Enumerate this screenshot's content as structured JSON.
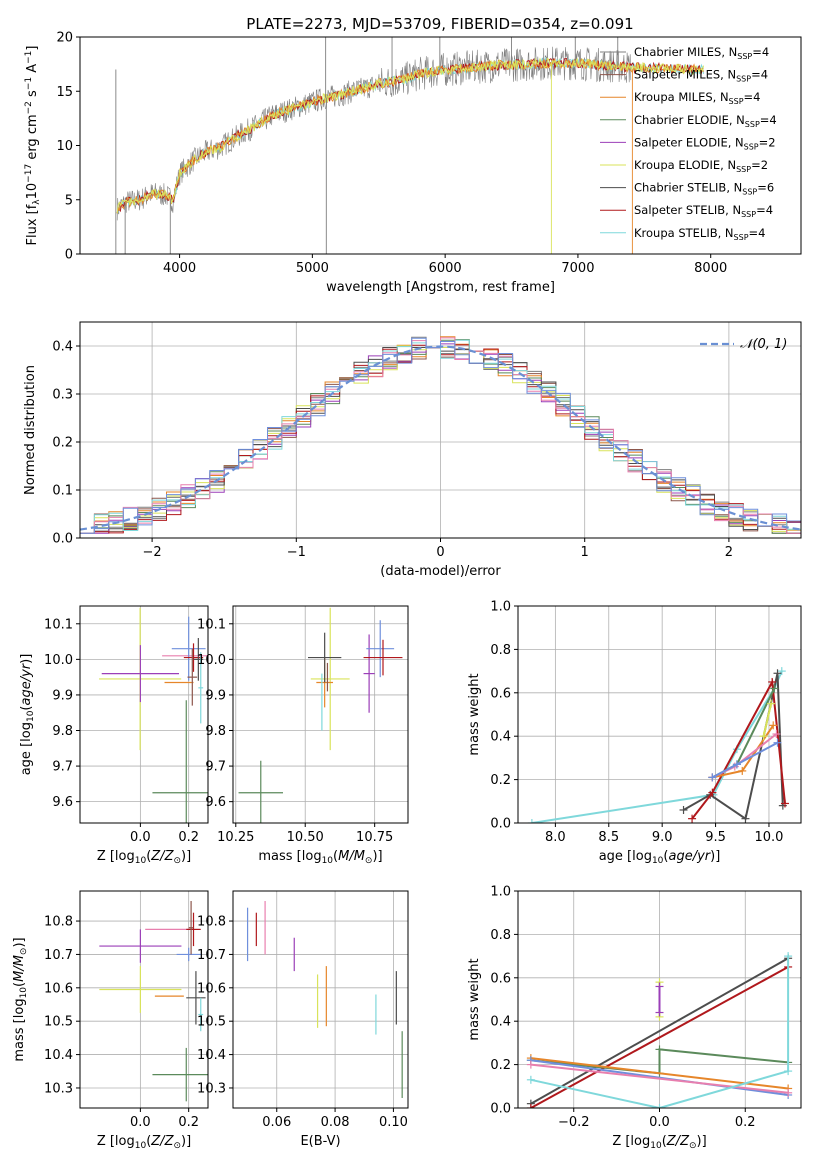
{
  "figure_title": "PLATE=2273, MJD=53709, FIBERID=0354, z=0.091",
  "colors": {
    "chabrier_miles": "#7f7f7f",
    "salpeter_miles": "#8c564b",
    "kroupa_miles": "#e6862a",
    "chabrier_elodie": "#5b8a5b",
    "salpeter_elodie": "#9b3fb8",
    "kroupa_elodie": "#d9e35a",
    "chabrier_stelib": "#4d4d4d",
    "salpeter_stelib": "#b0181c",
    "kroupa_stelib": "#7fd8db",
    "pink": "#e87fae",
    "blue": "#6f8fdc",
    "normal_curve": "#6a90d4",
    "grid": "#b0b0b0"
  },
  "chart_data": [
    {
      "id": "spectrum",
      "type": "line",
      "xlabel": "wavelength [Angstrom, rest frame]",
      "ylabel": "Flux [f_λ 10^-17 erg cm^-2 s^-1 A^-1]",
      "xlim": [
        3250,
        8680
      ],
      "ylim": [
        0,
        20
      ],
      "xticks": [
        4000,
        5000,
        6000,
        7000,
        8000
      ],
      "yticks": [
        0,
        5,
        10,
        15,
        20
      ],
      "grid": false,
      "legend_position": "right",
      "legend": [
        {
          "label": "Chabrier MILES, N_SSP=4",
          "color_key": "chabrier_miles"
        },
        {
          "label": "Salpeter MILES, N_SSP=4",
          "color_key": "salpeter_miles"
        },
        {
          "label": "Kroupa MILES, N_SSP=4",
          "color_key": "kroupa_miles"
        },
        {
          "label": "Chabrier ELODIE, N_SSP=4",
          "color_key": "chabrier_elodie"
        },
        {
          "label": "Salpeter ELODIE, N_SSP=2",
          "color_key": "salpeter_elodie"
        },
        {
          "label": "Kroupa ELODIE, N_SSP=2",
          "color_key": "kroupa_elodie"
        },
        {
          "label": "Chabrier STELIB, N_SSP=6",
          "color_key": "chabrier_stelib"
        },
        {
          "label": "Salpeter STELIB, N_SSP=4",
          "color_key": "salpeter_stelib"
        },
        {
          "label": "Kroupa STELIB, N_SSP=4",
          "color_key": "kroupa_stelib"
        }
      ],
      "continuum": [
        [
          3530,
          4.2
        ],
        [
          3600,
          4.8
        ],
        [
          3700,
          5.0
        ],
        [
          3800,
          5.6
        ],
        [
          3900,
          5.4
        ],
        [
          3950,
          4.9
        ],
        [
          4000,
          7.4
        ],
        [
          4100,
          8.6
        ],
        [
          4200,
          9.4
        ],
        [
          4300,
          9.8
        ],
        [
          4400,
          10.6
        ],
        [
          4500,
          11.3
        ],
        [
          4600,
          12.0
        ],
        [
          4700,
          12.8
        ],
        [
          4800,
          13.2
        ],
        [
          4900,
          13.6
        ],
        [
          5000,
          14.0
        ],
        [
          5100,
          14.4
        ],
        [
          5200,
          14.6
        ],
        [
          5300,
          15.0
        ],
        [
          5400,
          15.3
        ],
        [
          5500,
          15.7
        ],
        [
          5600,
          15.9
        ],
        [
          5700,
          16.1
        ],
        [
          5800,
          16.6
        ],
        [
          5900,
          16.8
        ],
        [
          6000,
          17.0
        ],
        [
          6200,
          17.2
        ],
        [
          6400,
          17.4
        ],
        [
          6600,
          17.5
        ],
        [
          6800,
          17.6
        ],
        [
          7000,
          17.6
        ],
        [
          7200,
          17.4
        ],
        [
          7300,
          17.3
        ],
        [
          7400,
          17.2
        ]
      ],
      "model_extension": [
        [
          7400,
          17.2
        ],
        [
          7600,
          17.3
        ],
        [
          7800,
          17.0
        ],
        [
          7950,
          17.0
        ]
      ],
      "spikes": [
        [
          3520,
          0
        ],
        [
          3590,
          0
        ],
        [
          3930,
          0
        ],
        [
          5105,
          0
        ],
        [
          6800,
          0
        ],
        [
          7410,
          0
        ],
        [
          5100,
          20
        ],
        [
          5600,
          20
        ],
        [
          5960,
          20
        ],
        [
          6500,
          20
        ],
        [
          6980,
          20
        ],
        [
          7300,
          20
        ]
      ]
    },
    {
      "id": "residuals",
      "type": "line",
      "xlabel": "(data-model)/error",
      "ylabel": "Normed distribution",
      "xlim": [
        -2.5,
        2.5
      ],
      "ylim": [
        0,
        0.45
      ],
      "xticks": [
        -2,
        -1,
        0,
        1,
        2
      ],
      "yticks": [
        0.0,
        0.1,
        0.2,
        0.3,
        0.4
      ],
      "grid": true,
      "legend_position": "top-right",
      "legend": [
        {
          "label": "𝒩(0, 1)",
          "color_key": "normal_curve"
        }
      ],
      "bin_width": 0.1,
      "series_color_keys": [
        "chabrier_miles",
        "salpeter_miles",
        "kroupa_miles",
        "chabrier_elodie",
        "salpeter_elodie",
        "kroupa_elodie",
        "chabrier_stelib",
        "salpeter_stelib",
        "kroupa_stelib",
        "pink",
        "blue"
      ]
    },
    {
      "id": "age-vs-z",
      "type": "scatter",
      "xlabel": "Z [log10(Z/Z⊙)]",
      "ylabel": "age [log10(age/yr)]",
      "xlim": [
        -0.25,
        0.28
      ],
      "ylim": [
        9.54,
        10.15
      ],
      "xticks": [
        0.0,
        0.2
      ],
      "yticks": [
        9.6,
        9.7,
        9.8,
        9.9,
        10.0,
        10.1
      ],
      "grid": true,
      "points": [
        {
          "x": 0.19,
          "y": 9.625,
          "xerr": 0.14,
          "yerr": 0.26,
          "color_key": "chabrier_elodie"
        },
        {
          "x": -0.001,
          "y": 9.945,
          "xerr": 0.17,
          "yerr": 0.2,
          "color_key": "kroupa_elodie"
        },
        {
          "x": 0.0,
          "y": 9.96,
          "xerr": 0.16,
          "yerr": 0.08,
          "color_key": "salpeter_elodie"
        },
        {
          "x": 0.16,
          "y": 9.935,
          "xerr": 0.06,
          "yerr": 0.0,
          "color_key": "kroupa_miles"
        },
        {
          "x": 0.19,
          "y": 10.01,
          "xerr": 0.1,
          "yerr": 0.0,
          "color_key": "pink"
        },
        {
          "x": 0.2,
          "y": 10.03,
          "xerr": 0.07,
          "yerr": 0.09,
          "color_key": "blue"
        },
        {
          "x": 0.22,
          "y": 10.005,
          "xerr": 0.04,
          "yerr": 0.04,
          "color_key": "salpeter_stelib"
        },
        {
          "x": 0.24,
          "y": 10.0,
          "xerr": 0.02,
          "yerr": 0.06,
          "color_key": "chabrier_stelib"
        },
        {
          "x": 0.215,
          "y": 9.95,
          "xerr": 0.02,
          "yerr": 0.08,
          "color_key": "salpeter_miles"
        },
        {
          "x": 0.25,
          "y": 9.92,
          "xerr": 0.01,
          "yerr": 0.1,
          "color_key": "kroupa_stelib"
        }
      ]
    },
    {
      "id": "age-vs-mass",
      "type": "scatter",
      "xlabel": "mass [log10(M/M⊙)]",
      "ylabel": "",
      "xlim": [
        10.24,
        10.87
      ],
      "ylim": [
        9.54,
        10.15
      ],
      "xticks": [
        10.25,
        10.5,
        10.75
      ],
      "yticks": [
        9.6,
        9.7,
        9.8,
        9.9,
        10.0,
        10.1
      ],
      "grid": true,
      "points": [
        {
          "x": 10.34,
          "y": 9.625,
          "xerr": 0.08,
          "yerr": 0.09,
          "color_key": "chabrier_elodie"
        },
        {
          "x": 10.59,
          "y": 9.945,
          "xerr": 0.07,
          "yerr": 0.2,
          "color_key": "kroupa_elodie"
        },
        {
          "x": 10.57,
          "y": 9.935,
          "xerr": 0.03,
          "yerr": 0.07,
          "color_key": "kroupa_miles"
        },
        {
          "x": 10.57,
          "y": 10.005,
          "xerr": 0.06,
          "yerr": 0.07,
          "color_key": "chabrier_stelib"
        },
        {
          "x": 10.73,
          "y": 9.96,
          "xerr": 0.02,
          "yerr": 0.11,
          "color_key": "salpeter_elodie"
        },
        {
          "x": 10.77,
          "y": 10.03,
          "xerr": 0.05,
          "yerr": 0.08,
          "color_key": "blue"
        },
        {
          "x": 10.78,
          "y": 10.005,
          "xerr": 0.07,
          "yerr": 0.05,
          "color_key": "salpeter_stelib"
        },
        {
          "x": 10.56,
          "y": 9.88,
          "xerr": 0.0,
          "yerr": 0.08,
          "color_key": "kroupa_stelib"
        },
        {
          "x": 10.58,
          "y": 9.95,
          "xerr": 0.0,
          "yerr": 0.04,
          "color_key": "salpeter_miles"
        }
      ]
    },
    {
      "id": "weight-vs-age",
      "type": "line",
      "xlabel": "age [log10(age/yr)]",
      "ylabel": "mass weight",
      "xlim": [
        7.65,
        10.3
      ],
      "ylim": [
        0,
        1
      ],
      "xticks": [
        8.0,
        8.5,
        9.0,
        9.5,
        10.0
      ],
      "yticks": [
        0.0,
        0.2,
        0.4,
        0.6,
        0.8,
        1.0
      ],
      "grid": true,
      "series": [
        {
          "color_key": "kroupa_stelib",
          "x": [
            7.78,
            9.48,
            9.7,
            10.05,
            10.12
          ],
          "y": [
            0.0,
            0.13,
            0.34,
            0.62,
            0.7
          ]
        },
        {
          "color_key": "chabrier_stelib",
          "x": [
            9.2,
            9.45,
            9.78,
            10.08,
            10.13
          ],
          "y": [
            0.06,
            0.13,
            0.02,
            0.69,
            0.08
          ]
        },
        {
          "color_key": "salpeter_stelib",
          "x": [
            9.28,
            9.47,
            10.03,
            10.15
          ],
          "y": [
            0.02,
            0.14,
            0.65,
            0.09
          ]
        },
        {
          "color_key": "chabrier_elodie",
          "x": [
            9.47,
            9.7,
            10.05
          ],
          "y": [
            0.21,
            0.27,
            0.62
          ]
        },
        {
          "color_key": "kroupa_miles",
          "x": [
            9.47,
            9.75,
            10.04
          ],
          "y": [
            0.21,
            0.24,
            0.45
          ]
        },
        {
          "color_key": "pink",
          "x": [
            9.47,
            9.68,
            10.07
          ],
          "y": [
            0.21,
            0.26,
            0.41
          ]
        },
        {
          "color_key": "blue",
          "x": [
            9.47,
            9.7,
            10.08
          ],
          "y": [
            0.21,
            0.27,
            0.37
          ]
        },
        {
          "color_key": "kroupa_elodie",
          "x": [
            9.95,
            10.02
          ],
          "y": [
            0.4,
            0.55
          ]
        }
      ]
    },
    {
      "id": "mass-vs-z",
      "type": "scatter",
      "xlabel": "Z [log10(Z/Z⊙)]",
      "ylabel": "mass [log10(M/M⊙)]",
      "xlim": [
        -0.25,
        0.28
      ],
      "ylim": [
        10.24,
        10.89
      ],
      "xticks": [
        0.0,
        0.2
      ],
      "yticks": [
        10.3,
        10.4,
        10.5,
        10.6,
        10.7,
        10.8
      ],
      "grid": true,
      "points": [
        {
          "x": 0.19,
          "y": 10.34,
          "xerr": 0.14,
          "yerr": 0.08,
          "color_key": "chabrier_elodie"
        },
        {
          "x": 0.0,
          "y": 10.595,
          "xerr": 0.17,
          "yerr": 0.07,
          "color_key": "kroupa_elodie"
        },
        {
          "x": 0.0,
          "y": 10.725,
          "xerr": 0.17,
          "yerr": 0.05,
          "color_key": "salpeter_elodie"
        },
        {
          "x": 0.12,
          "y": 10.575,
          "xerr": 0.06,
          "yerr": 0.0,
          "color_key": "kroupa_miles"
        },
        {
          "x": 0.12,
          "y": 10.775,
          "xerr": 0.1,
          "yerr": 0.0,
          "color_key": "pink"
        },
        {
          "x": 0.2,
          "y": 10.7,
          "xerr": 0.05,
          "yerr": 0.02,
          "color_key": "blue"
        },
        {
          "x": 0.22,
          "y": 10.775,
          "xerr": 0.03,
          "yerr": 0.05,
          "color_key": "salpeter_stelib"
        },
        {
          "x": 0.23,
          "y": 10.57,
          "xerr": 0.04,
          "yerr": 0.08,
          "color_key": "chabrier_stelib"
        },
        {
          "x": 0.21,
          "y": 10.78,
          "xerr": 0.01,
          "yerr": 0.08,
          "color_key": "salpeter_miles"
        },
        {
          "x": 0.25,
          "y": 10.52,
          "xerr": 0.01,
          "yerr": 0.05,
          "color_key": "kroupa_stelib"
        }
      ]
    },
    {
      "id": "mass-vs-ebv",
      "type": "scatter",
      "xlabel": "E(B-V)",
      "ylabel": "",
      "xlim": [
        0.045,
        0.105
      ],
      "ylim": [
        10.24,
        10.89
      ],
      "xticks": [
        0.06,
        0.08,
        0.1
      ],
      "yticks": [
        10.3,
        10.4,
        10.5,
        10.6,
        10.7,
        10.8
      ],
      "grid": true,
      "points": [
        {
          "x": 0.05,
          "y": 10.76,
          "xerr": 0.0,
          "yerr": 0.08,
          "color_key": "blue"
        },
        {
          "x": 0.053,
          "y": 10.775,
          "xerr": 0.0,
          "yerr": 0.05,
          "color_key": "salpeter_stelib"
        },
        {
          "x": 0.056,
          "y": 10.78,
          "xerr": 0.0,
          "yerr": 0.08,
          "color_key": "pink"
        },
        {
          "x": 0.066,
          "y": 10.7,
          "xerr": 0.0,
          "yerr": 0.05,
          "color_key": "salpeter_elodie"
        },
        {
          "x": 0.074,
          "y": 10.56,
          "xerr": 0.0,
          "yerr": 0.08,
          "color_key": "kroupa_elodie"
        },
        {
          "x": 0.077,
          "y": 10.575,
          "xerr": 0.0,
          "yerr": 0.09,
          "color_key": "kroupa_miles"
        },
        {
          "x": 0.094,
          "y": 10.52,
          "xerr": 0.0,
          "yerr": 0.06,
          "color_key": "kroupa_stelib"
        },
        {
          "x": 0.101,
          "y": 10.57,
          "xerr": 0.0,
          "yerr": 0.08,
          "color_key": "chabrier_stelib"
        },
        {
          "x": 0.103,
          "y": 10.37,
          "xerr": 0.0,
          "yerr": 0.1,
          "color_key": "chabrier_elodie"
        }
      ]
    },
    {
      "id": "weight-vs-z",
      "type": "line",
      "xlabel": "Z [log10(Z/Z⊙)]",
      "ylabel": "mass weight",
      "xlim": [
        -0.33,
        0.33
      ],
      "ylim": [
        0,
        1
      ],
      "xticks": [
        -0.2,
        0.0,
        0.2
      ],
      "yticks": [
        0.0,
        0.2,
        0.4,
        0.6,
        0.8,
        1.0
      ],
      "grid": true,
      "series": [
        {
          "color_key": "chabrier_stelib",
          "x": [
            -0.3,
            0.3
          ],
          "y": [
            0.02,
            0.69
          ]
        },
        {
          "color_key": "salpeter_stelib",
          "x": [
            -0.3,
            0.3
          ],
          "y": [
            0.0,
            0.65
          ]
        },
        {
          "color_key": "chabrier_elodie",
          "x": [
            -0.3,
            0.0,
            0.0,
            0.3
          ],
          "y": [
            0.22,
            0.16,
            0.27,
            0.21
          ]
        },
        {
          "color_key": "kroupa_miles",
          "x": [
            -0.3,
            0.3
          ],
          "y": [
            0.23,
            0.09
          ]
        },
        {
          "color_key": "blue",
          "x": [
            -0.3,
            0.3
          ],
          "y": [
            0.22,
            0.06
          ]
        },
        {
          "color_key": "pink",
          "x": [
            -0.3,
            0.3
          ],
          "y": [
            0.2,
            0.07
          ]
        },
        {
          "color_key": "kroupa_stelib",
          "x": [
            -0.3,
            0.0,
            0.3,
            0.3
          ],
          "y": [
            0.13,
            0.0,
            0.17,
            0.7
          ]
        },
        {
          "color_key": "kroupa_elodie",
          "x": [
            0.0,
            0.0
          ],
          "y": [
            0.42,
            0.58
          ]
        },
        {
          "color_key": "salpeter_elodie",
          "x": [
            0.0,
            0.0
          ],
          "y": [
            0.44,
            0.56
          ]
        }
      ]
    }
  ]
}
